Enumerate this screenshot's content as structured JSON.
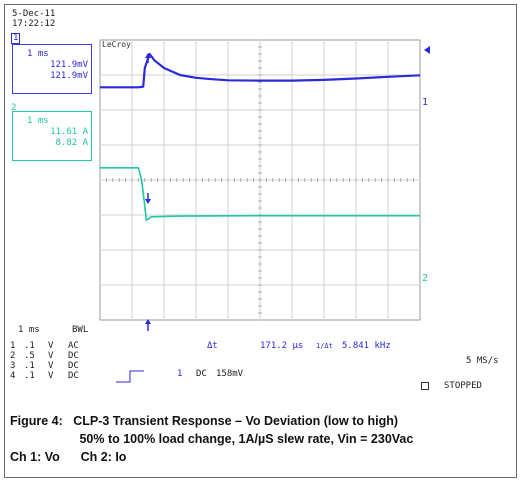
{
  "header": {
    "date": "5-Dec-11",
    "time": "17:22:12"
  },
  "brand": "LeCroy",
  "channel1": {
    "marker": "1",
    "timebase": "1 ms",
    "val1": "121.9mV",
    "val2": "121.9mV",
    "color": "#2a2ad8"
  },
  "channel2": {
    "marker": "2",
    "timebase": "1 ms",
    "val1": "11.61 A",
    "val2": "8.82 A",
    "color": "#1fc7a4"
  },
  "trace_labels": {
    "ch1": "1",
    "ch2": "2"
  },
  "measure": {
    "dt_label": "Δt",
    "dt_value": "171.2 μs",
    "inv_label": "1/Δt",
    "inv_value": "5.841 kHz"
  },
  "timebase": {
    "value": "1 ms",
    "bwl": "BWL"
  },
  "channel_settings": [
    {
      "ch": "1",
      "scale": ".1",
      "unit": "V",
      "coupling": "AC"
    },
    {
      "ch": "2",
      "scale": ".5",
      "unit": "V",
      "coupling": "DC"
    },
    {
      "ch": "3",
      "scale": ".1",
      "unit": "V",
      "coupling": "DC"
    },
    {
      "ch": "4",
      "scale": ".1",
      "unit": "V",
      "coupling": "DC"
    }
  ],
  "trigger": {
    "channel": "1",
    "coupling": "DC",
    "level": "158mV"
  },
  "sample_rate": "5 MS/s",
  "status": "STOPPED",
  "caption": {
    "line1": "Figure 4:   CLP-3 Transient Response – Vo Deviation (low to high)",
    "line2": "                    50% to 100% load change, 1A/µS slew rate, Vin = 230Vac",
    "line3": "Ch 1: Vo      Ch 2: Io"
  },
  "chart_data": {
    "type": "line",
    "grid": true,
    "xdivs": 10,
    "ydivs": 8,
    "xlim": [
      0,
      10
    ],
    "ylim": [
      0,
      8
    ],
    "series": [
      {
        "name": "1",
        "color": "#2a2ad8",
        "x": [
          0,
          1.2,
          1.35,
          1.4,
          1.55,
          1.7,
          2.0,
          2.5,
          3.0,
          3.5,
          4.0,
          5.0,
          6.0,
          7.0,
          8.0,
          9.0,
          10.0
        ],
        "y": [
          6.65,
          6.65,
          6.67,
          7.2,
          7.6,
          7.42,
          7.2,
          7.0,
          6.92,
          6.88,
          6.85,
          6.84,
          6.84,
          6.86,
          6.9,
          6.95,
          6.99
        ]
      },
      {
        "name": "2",
        "color": "#1fc7a4",
        "x": [
          0,
          1.2,
          1.3,
          1.38,
          1.45,
          1.6,
          2.5,
          5.0,
          10.0
        ],
        "y": [
          4.35,
          4.35,
          4.0,
          3.4,
          2.85,
          2.95,
          2.97,
          2.98,
          2.98
        ]
      }
    ]
  }
}
